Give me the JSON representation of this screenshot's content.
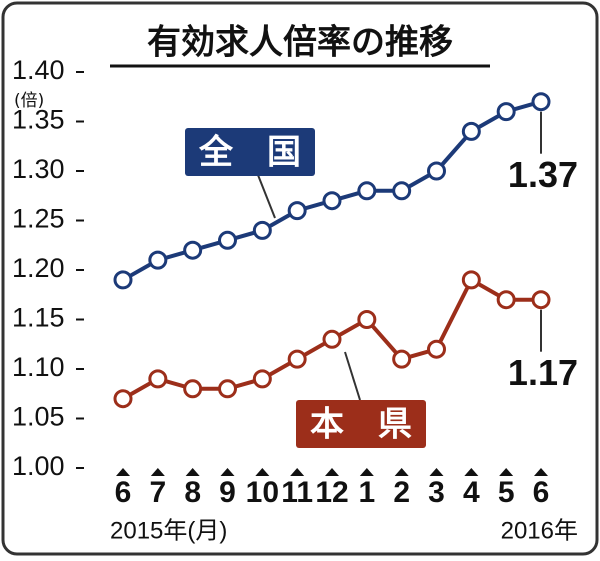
{
  "chart_data": {
    "type": "line",
    "title": "有効求人倍率の推移",
    "y_unit": "(倍)",
    "categories": [
      "6",
      "7",
      "8",
      "9",
      "10",
      "11",
      "12",
      "1",
      "2",
      "3",
      "4",
      "5",
      "6"
    ],
    "x_labels": [
      "2015年(月)",
      "2016年"
    ],
    "series": [
      {
        "name": "全　国",
        "color": "#1c3a78",
        "values": [
          1.19,
          1.21,
          1.22,
          1.23,
          1.24,
          1.26,
          1.27,
          1.28,
          1.28,
          1.3,
          1.34,
          1.36,
          1.37
        ]
      },
      {
        "name": "本　県",
        "color": "#9c2e1a",
        "values": [
          1.07,
          1.09,
          1.08,
          1.08,
          1.09,
          1.11,
          1.13,
          1.15,
          1.11,
          1.12,
          1.19,
          1.17,
          1.17
        ]
      }
    ],
    "ylim": [
      1.0,
      1.4
    ],
    "yticks": [
      {
        "value": 1.0,
        "label": "1.00"
      },
      1.05,
      {
        "value": 1.1,
        "label": "1.10"
      },
      1.15,
      {
        "value": 1.2,
        "label": "1.20"
      },
      1.25,
      {
        "value": 1.3,
        "label": "1.30"
      },
      1.35,
      {
        "value": 1.4,
        "label": "1.40"
      }
    ],
    "grid": false
  }
}
